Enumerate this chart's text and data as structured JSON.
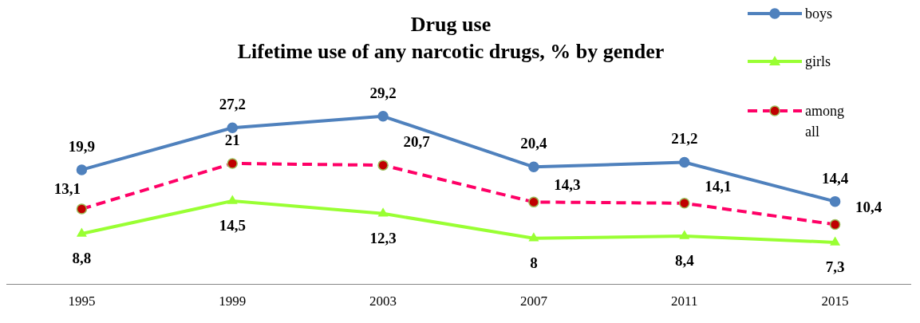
{
  "chart_data": {
    "type": "line",
    "title": "Drug use",
    "subtitle": "Lifetime use of any narcotic drugs, % by gender",
    "categories": [
      "1995",
      "1999",
      "2003",
      "2007",
      "2011",
      "2015"
    ],
    "series": [
      {
        "name": "boys",
        "color": "#4f81bd",
        "marker": "circle",
        "line_style": "solid",
        "values": [
          19.9,
          27.2,
          29.2,
          20.4,
          21.2,
          14.4
        ],
        "value_labels": [
          "19,9",
          "27,2",
          "29,2",
          "20,4",
          "21,2",
          "14,4"
        ]
      },
      {
        "name": "girls",
        "color": "#99ff33",
        "marker": "triangle",
        "line_style": "solid",
        "values": [
          8.8,
          14.5,
          12.3,
          8,
          8.4,
          7.3
        ],
        "value_labels": [
          "8,8",
          "14,5",
          "12,3",
          "8",
          "8,4",
          "7,3"
        ]
      },
      {
        "name": "among all",
        "color": "#ff0066",
        "marker": "circle",
        "line_style": "dashed",
        "values": [
          13.1,
          21,
          20.7,
          14.3,
          14.1,
          10.4
        ],
        "value_labels": [
          "13,1",
          "21",
          "20,7",
          "14,3",
          "14,1",
          "10,4"
        ]
      }
    ],
    "grid": false,
    "legend": "top right"
  }
}
